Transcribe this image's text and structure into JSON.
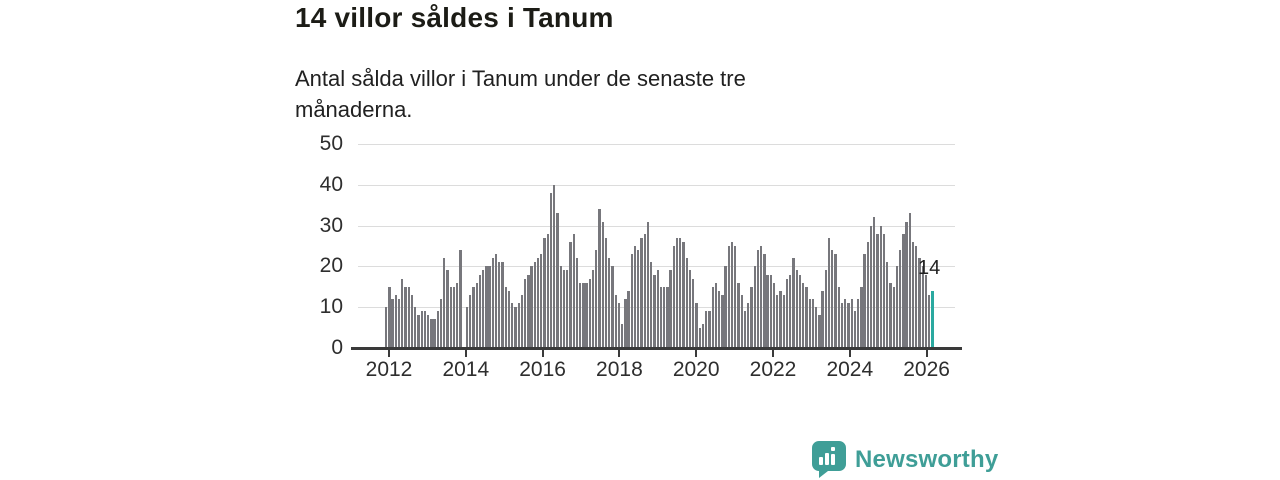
{
  "header": {
    "title": "14 villor såldes i Tanum",
    "subtitle": "Antal sålda villor i Tanum under de senaste tre månaderna."
  },
  "chart_data": {
    "type": "bar",
    "title": "14 villor såldes i Tanum",
    "subtitle": "Antal sålda villor i Tanum under de senaste tre månaderna.",
    "ylabel": "",
    "xlabel": "",
    "frequency": "monthly",
    "x_start": "2012-01",
    "x_end": "2026-02",
    "ylim": [
      0,
      50
    ],
    "yticks": [
      0,
      10,
      20,
      30,
      40,
      50
    ],
    "xtick_years": [
      2012,
      2014,
      2016,
      2018,
      2020,
      2022,
      2024,
      2026
    ],
    "grid": true,
    "legend": "none",
    "bar_color": "#77777c",
    "values": [
      10,
      15,
      12,
      13,
      12,
      17,
      15,
      15,
      13,
      10,
      8,
      9,
      9,
      8,
      7,
      7,
      9,
      12,
      22,
      19,
      15,
      15,
      16,
      24,
      0,
      10,
      13,
      15,
      16,
      18,
      19,
      20,
      20,
      22,
      23,
      21,
      21,
      15,
      14,
      11,
      10,
      11,
      13,
      17,
      18,
      20,
      21,
      22,
      23,
      27,
      28,
      38,
      40,
      33,
      20,
      19,
      19,
      26,
      28,
      22,
      16,
      16,
      16,
      17,
      19,
      24,
      34,
      31,
      27,
      22,
      20,
      13,
      11,
      6,
      12,
      14,
      23,
      25,
      24,
      27,
      28,
      31,
      21,
      18,
      19,
      15,
      15,
      15,
      19,
      25,
      27,
      27,
      26,
      22,
      19,
      17,
      11,
      5,
      6,
      9,
      9,
      15,
      16,
      14,
      13,
      20,
      25,
      26,
      25,
      16,
      13,
      9,
      11,
      15,
      20,
      24,
      25,
      23,
      18,
      18,
      16,
      13,
      14,
      13,
      17,
      18,
      22,
      19,
      18,
      16,
      15,
      12,
      12,
      10,
      8,
      14,
      19,
      27,
      24,
      23,
      15,
      11,
      12,
      11,
      12,
      9,
      12,
      15,
      23,
      26,
      30,
      32,
      28,
      30,
      28,
      21,
      16,
      15,
      20,
      24,
      28,
      31,
      33,
      26,
      25,
      22,
      20,
      18,
      13,
      14
    ],
    "highlight": {
      "index": 169,
      "value": 14,
      "label": "14",
      "color": "#2aa9a0"
    }
  },
  "footer": {
    "brand_label": "Newsworthy",
    "brand_color": "#3f9e97",
    "logo_icon": "bar-chart-speech-bubble-icon"
  }
}
